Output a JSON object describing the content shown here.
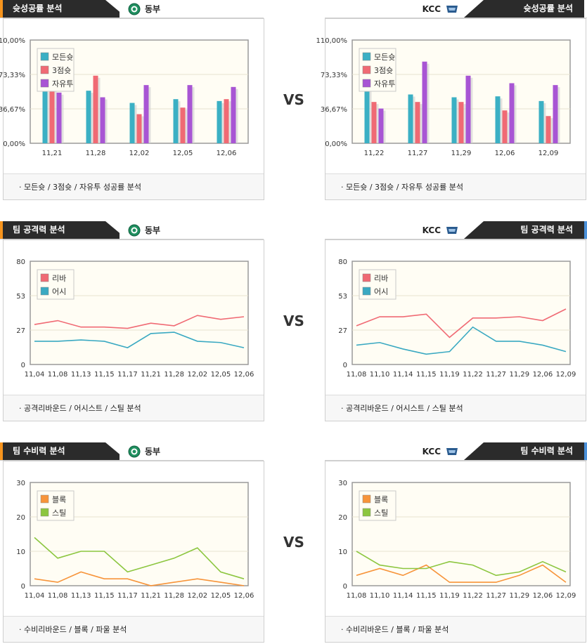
{
  "sections": [
    {
      "left": {
        "tab": "슛성공률 분석",
        "team": "동부",
        "accent": "#f7941d",
        "footer": "· 모든슛 / 3점슛 / 자유투 성공률 분석"
      },
      "right": {
        "tab": "슛성공률 분석",
        "team": "KCC",
        "accent": "#ffffff",
        "footer": "· 모든슛 / 3점슛 / 자유투 성공률 분석"
      },
      "vs": "VS"
    },
    {
      "left": {
        "tab": "팀 공격력 분석",
        "team": "동부",
        "accent": "#f7941d",
        "footer": "· 공격리바운드 / 어시스트 / 스틸 분석"
      },
      "right": {
        "tab": "팀 공격력 분석",
        "team": "KCC",
        "accent": "#4a90d9",
        "footer": "· 공격리바운드 / 어시스트 / 스틸 분석"
      },
      "vs": "VS"
    },
    {
      "left": {
        "tab": "팀 수비력 분석",
        "team": "동부",
        "accent": "#f7941d",
        "footer": "· 수비리바운드 / 블록 / 파울 분석"
      },
      "right": {
        "tab": "팀 수비력 분석",
        "team": "KCC",
        "accent": "#4a90d9",
        "footer": "· 수비리바운드 / 블록 / 파울 분석"
      },
      "vs": "VS"
    }
  ],
  "chart_data": [
    {
      "id": "shot-dongbu",
      "type": "bar",
      "yticks": [
        "110,00%",
        "73,33%",
        "36,67%",
        "0,00%"
      ],
      "ylim": [
        0,
        110
      ],
      "categories": [
        "11,21",
        "11,28",
        "12,02",
        "12,05",
        "12,06"
      ],
      "series": [
        {
          "name": "모든슛",
          "color": "#3bb0c4",
          "values": [
            57,
            56,
            43,
            47,
            45
          ]
        },
        {
          "name": "3점슛",
          "color": "#f06a74",
          "values": [
            58,
            72,
            31,
            38,
            47
          ]
        },
        {
          "name": "자유투",
          "color": "#a855d4",
          "values": [
            54,
            49,
            62,
            62,
            60
          ]
        }
      ],
      "legend": "top-left"
    },
    {
      "id": "shot-kcc",
      "type": "bar",
      "yticks": [
        "110,00%",
        "73,33%",
        "36,67%",
        "0,00%"
      ],
      "ylim": [
        0,
        110
      ],
      "categories": [
        "11,22",
        "11,27",
        "11,29",
        "12,06",
        "12,09"
      ],
      "series": [
        {
          "name": "모든슛",
          "color": "#3bb0c4",
          "values": [
            58,
            52,
            49,
            50,
            45
          ]
        },
        {
          "name": "3점슛",
          "color": "#f06a74",
          "values": [
            44,
            44,
            44,
            35,
            29
          ]
        },
        {
          "name": "자유투",
          "color": "#a855d4",
          "values": [
            37,
            87,
            72,
            64,
            62
          ]
        }
      ],
      "legend": "top-left"
    },
    {
      "id": "off-dongbu",
      "type": "line",
      "yticks": [
        "80",
        "53",
        "27",
        "0"
      ],
      "ylim": [
        0,
        80
      ],
      "categories": [
        "11,04",
        "11,08",
        "11,13",
        "11,15",
        "11,17",
        "11,21",
        "11,28",
        "12,02",
        "12,05",
        "12,06"
      ],
      "series": [
        {
          "name": "리바",
          "color": "#f06a74",
          "values": [
            31,
            34,
            29,
            29,
            28,
            32,
            30,
            38,
            35,
            37
          ]
        },
        {
          "name": "어시",
          "color": "#3aa9c2",
          "values": [
            18,
            18,
            19,
            18,
            13,
            24,
            25,
            18,
            17,
            13
          ]
        }
      ],
      "legend": "top-left"
    },
    {
      "id": "off-kcc",
      "type": "line",
      "yticks": [
        "80",
        "53",
        "27",
        "0"
      ],
      "ylim": [
        0,
        80
      ],
      "categories": [
        "11,08",
        "11,10",
        "11,14",
        "11,15",
        "11,19",
        "11,22",
        "11,27",
        "11,29",
        "12,06",
        "12,09"
      ],
      "series": [
        {
          "name": "리바",
          "color": "#f06a74",
          "values": [
            30,
            37,
            37,
            39,
            21,
            36,
            36,
            37,
            34,
            43
          ]
        },
        {
          "name": "어시",
          "color": "#3aa9c2",
          "values": [
            15,
            17,
            12,
            8,
            10,
            29,
            18,
            18,
            15,
            10
          ]
        }
      ],
      "legend": "top-left"
    },
    {
      "id": "def-dongbu",
      "type": "line",
      "yticks": [
        "30",
        "20",
        "10",
        "0"
      ],
      "ylim": [
        0,
        30
      ],
      "categories": [
        "11,04",
        "11,08",
        "11,13",
        "11,15",
        "11,17",
        "11,21",
        "11,28",
        "12,02",
        "12,05",
        "12,06"
      ],
      "series": [
        {
          "name": "블록",
          "color": "#f7943a",
          "values": [
            2,
            1,
            4,
            2,
            2,
            0,
            1,
            2,
            1,
            0
          ]
        },
        {
          "name": "스틸",
          "color": "#8cc63f",
          "values": [
            14,
            8,
            10,
            10,
            4,
            6,
            8,
            11,
            4,
            2
          ]
        }
      ],
      "legend": "top-left"
    },
    {
      "id": "def-kcc",
      "type": "line",
      "yticks": [
        "30",
        "20",
        "10",
        "0"
      ],
      "ylim": [
        0,
        30
      ],
      "categories": [
        "11,08",
        "11,10",
        "11,14",
        "11,15",
        "11,19",
        "11,22",
        "11,27",
        "11,29",
        "12,06",
        "12,09"
      ],
      "series": [
        {
          "name": "블록",
          "color": "#f7943a",
          "values": [
            3,
            5,
            3,
            6,
            1,
            1,
            1,
            3,
            6,
            1
          ]
        },
        {
          "name": "스틸",
          "color": "#8cc63f",
          "values": [
            10,
            6,
            5,
            5,
            7,
            6,
            3,
            4,
            7,
            4
          ]
        }
      ],
      "legend": "top-left"
    }
  ]
}
